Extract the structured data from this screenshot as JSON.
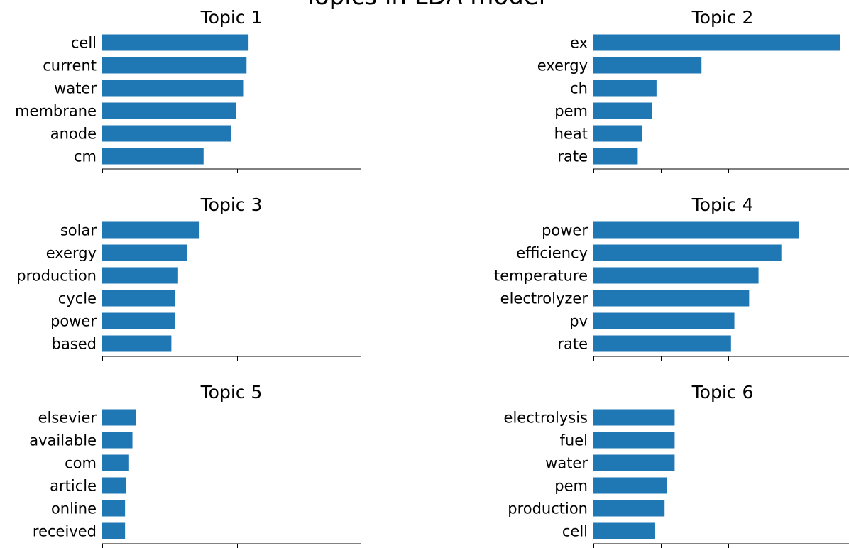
{
  "suptitle": "Topics in LDA model",
  "bar_color": "#1f77b4",
  "chart_data": [
    {
      "type": "bar",
      "orientation": "horizontal",
      "title": "Topic 1",
      "categories": [
        "cell",
        "current",
        "water",
        "membrane",
        "anode",
        "cm"
      ],
      "values": [
        218,
        215,
        211,
        199,
        192,
        151
      ],
      "xlim": [
        0,
        385
      ],
      "grid": false
    },
    {
      "type": "bar",
      "orientation": "horizontal",
      "title": "Topic 2",
      "categories": [
        "ex",
        "exergy",
        "ch",
        "pem",
        "heat",
        "rate"
      ],
      "values": [
        368,
        161,
        94,
        87,
        73,
        66
      ],
      "xlim": [
        0,
        385
      ],
      "grid": false
    },
    {
      "type": "bar",
      "orientation": "horizontal",
      "title": "Topic 3",
      "categories": [
        "solar",
        "exergy",
        "production",
        "cycle",
        "power",
        "based"
      ],
      "values": [
        145,
        126,
        113,
        109,
        108,
        103
      ],
      "xlim": [
        0,
        385
      ],
      "grid": false
    },
    {
      "type": "bar",
      "orientation": "horizontal",
      "title": "Topic 4",
      "categories": [
        "power",
        "efficiency",
        "temperature",
        "electrolyzer",
        "pv",
        "rate"
      ],
      "values": [
        306,
        280,
        246,
        232,
        210,
        205
      ],
      "xlim": [
        0,
        385
      ],
      "grid": false
    },
    {
      "type": "bar",
      "orientation": "horizontal",
      "title": "Topic 5",
      "categories": [
        "elsevier",
        "available",
        "com",
        "article",
        "online",
        "received"
      ],
      "values": [
        50,
        45,
        40,
        36,
        34,
        34
      ],
      "xlim": [
        0,
        385
      ],
      "grid": false
    },
    {
      "type": "bar",
      "orientation": "horizontal",
      "title": "Topic 6",
      "categories": [
        "electrolysis",
        "fuel",
        "water",
        "pem",
        "production",
        "cell"
      ],
      "values": [
        121,
        121,
        121,
        110,
        106,
        92
      ],
      "xlim": [
        0,
        385
      ],
      "grid": false
    }
  ]
}
